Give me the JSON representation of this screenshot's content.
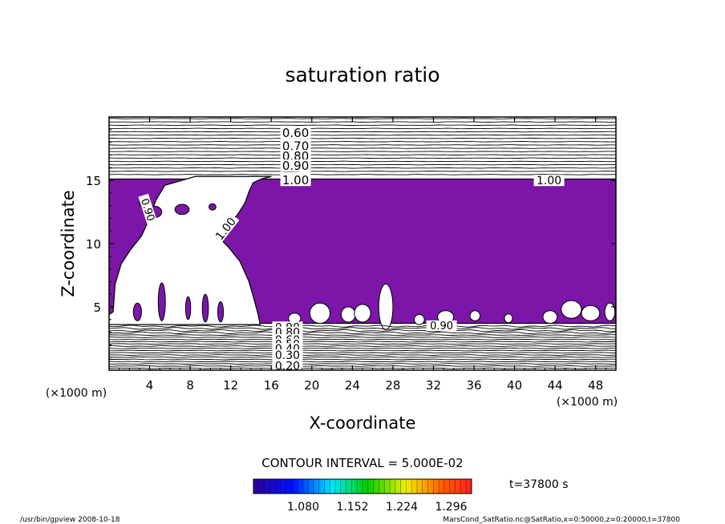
{
  "chart_data": {
    "type": "contour",
    "title": "saturation ratio",
    "xlabel": "X-coordinate",
    "ylabel": "Z-coordinate",
    "x_unit": "(×1000 m)",
    "z_unit": "(×1000 m)",
    "xlim": [
      0,
      50
    ],
    "zlim": [
      0,
      20
    ],
    "x_ticks": [
      4,
      8,
      12,
      16,
      20,
      24,
      28,
      32,
      36,
      40,
      44,
      48
    ],
    "z_ticks": [
      5,
      10,
      15
    ],
    "contour_interval_text": "CONTOUR INTERVAL = 5.000E-02",
    "contour_interval": 0.05,
    "upper_contours": [
      {
        "label": "0.60",
        "z": 18.8
      },
      {
        "label": "0.70",
        "z": 17.75
      },
      {
        "label": "0.80",
        "z": 16.95
      },
      {
        "label": "0.90",
        "z": 16.2
      },
      {
        "label": "1.00",
        "z": 15.05
      }
    ],
    "lower_contours": [
      {
        "label": "0.90",
        "z": 3.4
      },
      {
        "label": "0.80",
        "z": 3.0
      },
      {
        "label": "0.60",
        "z": 2.4
      },
      {
        "label": "0.50",
        "z": 2.05
      },
      {
        "label": "0.40",
        "z": 1.7
      },
      {
        "label": "0.30",
        "z": 1.2
      },
      {
        "label": "0.20",
        "z": 0.35
      }
    ],
    "inner_labels": [
      "1.00",
      "1.00",
      "0.90",
      "0.90"
    ],
    "supersaturated_region": {
      "fill_color": "#7b16a8",
      "z_range": [
        3.7,
        15.1
      ],
      "x_range": [
        0,
        50
      ],
      "note_clear_area": "large unshaded region x 0.5-14, z 4-15"
    },
    "colorbar": {
      "tick_labels": [
        "1.080",
        "1.152",
        "1.224",
        "1.296"
      ],
      "colors": [
        "#2a0080",
        "#0000ff",
        "#00ffff",
        "#00ff00",
        "#ffff00",
        "#ff0000"
      ]
    },
    "time_label": "t=37800 s",
    "grid": false
  },
  "footer": {
    "left": "/usr/bin/gpview   2008-10-18",
    "right": "MarsCond_SatRatio.nc@SatRatio,x=0:50000,z=0:20000,t=37800"
  }
}
